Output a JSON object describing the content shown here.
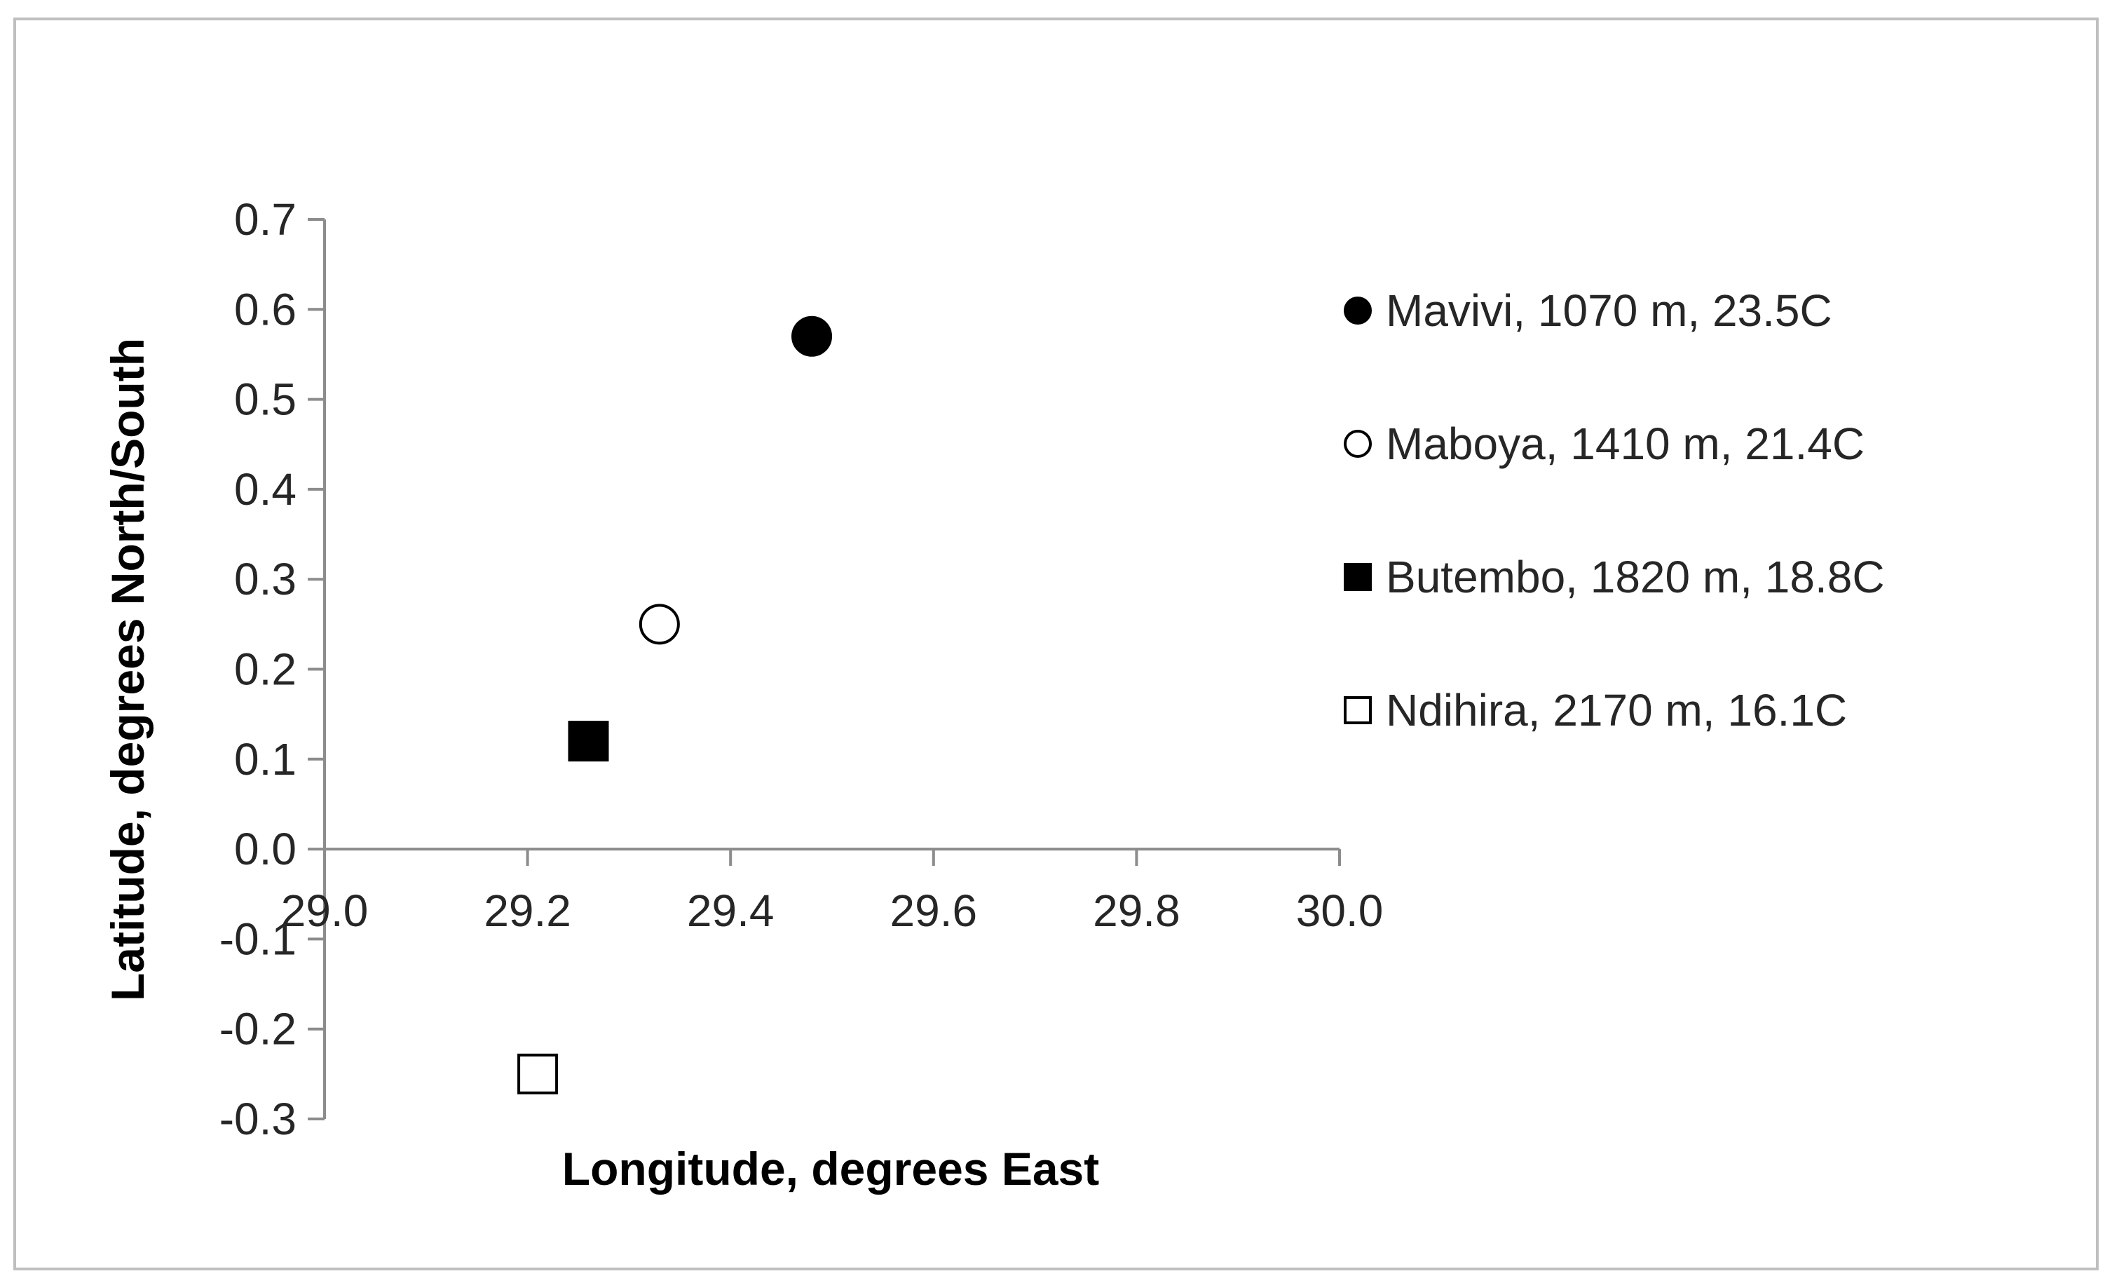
{
  "chart_data": {
    "type": "scatter",
    "title": "",
    "xlabel": "Longitude, degrees East",
    "ylabel": "Latitude, degrees North/South",
    "xlim": [
      29.0,
      30.0
    ],
    "ylim": [
      -0.3,
      0.7
    ],
    "xticks": [
      "29.0",
      "29.2",
      "29.4",
      "29.6",
      "29.8",
      "30.0"
    ],
    "yticks": [
      "-0.3",
      "-0.2",
      "-0.1",
      "0.0",
      "0.1",
      "0.2",
      "0.3",
      "0.4",
      "0.5",
      "0.6",
      "0.7"
    ],
    "grid": false,
    "legend_position": "right",
    "series": [
      {
        "name": "Mavivi, 1070 m, 23.5C",
        "x": 29.48,
        "y": 0.57,
        "marker": "filled-circle",
        "color": "#000000"
      },
      {
        "name": "Maboya, 1410 m, 21.4C",
        "x": 29.33,
        "y": 0.25,
        "marker": "open-circle",
        "color": "#000000"
      },
      {
        "name": "Butembo, 1820 m, 18.8C",
        "x": 29.26,
        "y": 0.12,
        "marker": "filled-square",
        "color": "#000000"
      },
      {
        "name": "Ndihira, 2170 m, 16.1C",
        "x": 29.21,
        "y": -0.25,
        "marker": "open-square",
        "color": "#000000"
      }
    ]
  }
}
